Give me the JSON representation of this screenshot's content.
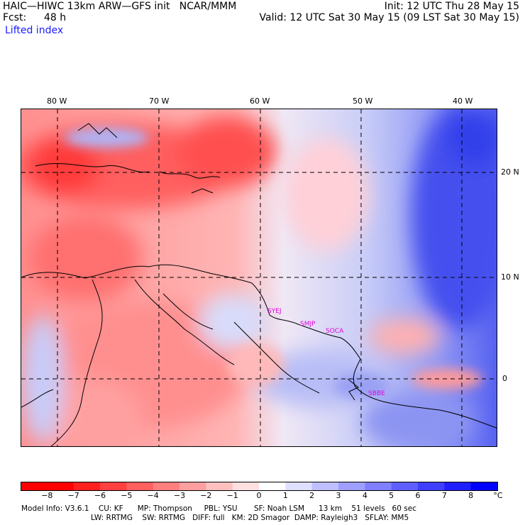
{
  "header": {
    "line1_left": "HAIC—HIWC 13km ARW—GFS init   NCAR/MMM",
    "line1_right": "Init: 12 UTC Thu 28 May 15",
    "line2_left_label": "Fcst:",
    "line2_left_value": "48 h",
    "line2_right": "Valid: 12 UTC Sat 30 May 15 (09 LST Sat 30 May 15)",
    "field": "Lifted index"
  },
  "axes": {
    "longitudes": [
      "80 W",
      "70 W",
      "60 W",
      "50 W",
      "40 W"
    ],
    "latitudes": [
      "20 N",
      "10 N",
      "0"
    ]
  },
  "cities": [
    "SYEJ",
    "SMJP",
    "SOCA",
    "SBBE"
  ],
  "colorbar": {
    "unit": "°C",
    "ticks": [
      "−8",
      "−7",
      "−6",
      "−5",
      "−4",
      "−3",
      "−2",
      "−1",
      "0",
      "1",
      "2",
      "3",
      "4",
      "5",
      "6",
      "7",
      "8"
    ],
    "colors": [
      "#ff0000",
      "#ff2020",
      "#ff4040",
      "#ff5f5f",
      "#ff7f7f",
      "#ff9f9f",
      "#ffbfbf",
      "#ffdfdf",
      "#ffffff",
      "#dfdfff",
      "#bfbfff",
      "#9f9fff",
      "#7f7fff",
      "#5f5fff",
      "#3f3fff",
      "#1f1fff",
      "#0000ff"
    ]
  },
  "footer": {
    "line1": "Model Info: V3.6.1    CU: KF      MP: Thompson     PBL: YSU       SF: Noah LSM      13 km    51 levels   60 sec",
    "line2": "LW: RRTMG    SW: RRTMG   DIFF: full   KM: 2D Smagor  DAMP: Rayleigh3   SFLAY: MM5"
  }
}
